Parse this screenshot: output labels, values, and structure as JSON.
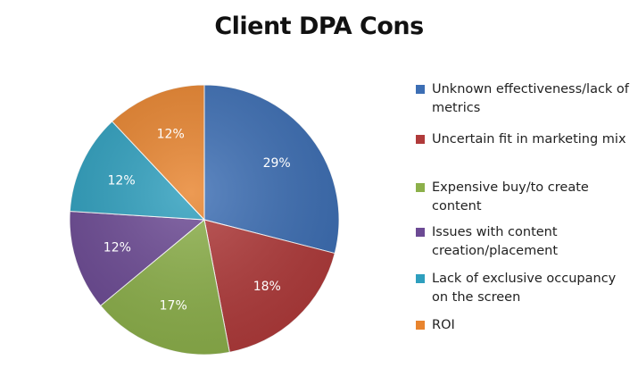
{
  "chart_data": {
    "type": "pie",
    "title": "Client DPA Cons",
    "legend_position": "right",
    "categories": [
      "Unknown effectiveness/lack of metrics",
      "Uncertain fit in marketing mix",
      "Expensive buy/to create content",
      "Issues with content creation/placement",
      "Lack of exclusive occupancy on the screen",
      "ROI"
    ],
    "values": [
      29,
      18,
      17,
      12,
      12,
      12
    ],
    "value_labels": [
      "29%",
      "18%",
      "17%",
      "12%",
      "12%",
      "12%"
    ],
    "colors": [
      "#3c6eb4",
      "#b03a3a",
      "#8cb04a",
      "#6c4a94",
      "#2e9fbe",
      "#e8842e"
    ]
  }
}
